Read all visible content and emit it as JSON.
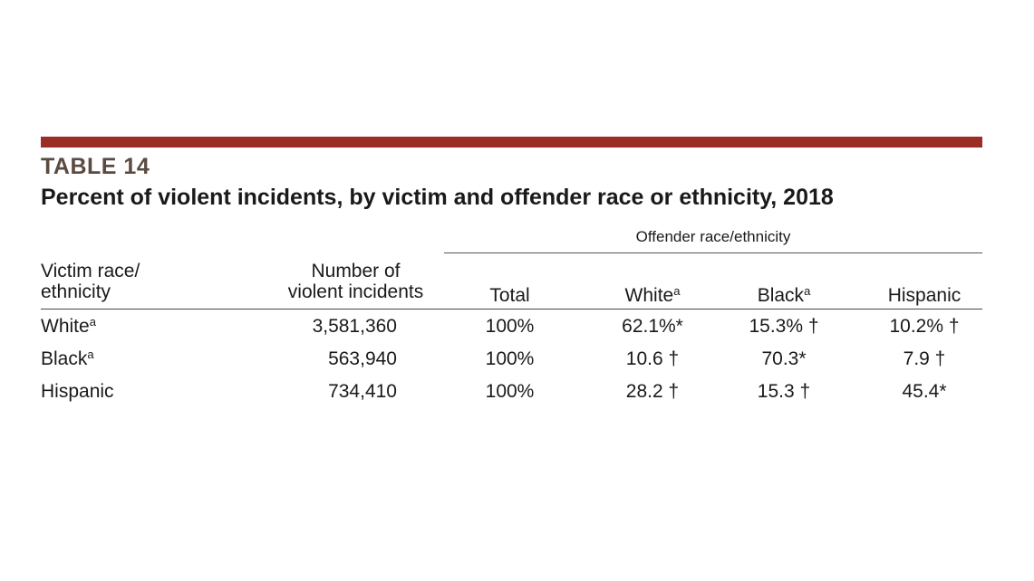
{
  "table": {
    "label": "TABLE 14",
    "title": "Percent of violent incidents, by victim and offender race or ethnicity, 2018",
    "spanner": "Offender race/ethnicity",
    "headers": {
      "victim_line1": "Victim race/",
      "victim_line2": "ethnicity",
      "number_line1": "Number of",
      "number_line2": "violent incidents",
      "total": "Total",
      "white": "White",
      "white_note": "a",
      "black": "Black",
      "black_note": "a",
      "hispanic": "Hispanic"
    },
    "rows": [
      {
        "victim": "White",
        "note": "a",
        "number": "3,581,360",
        "total": "100%",
        "white": "62.1%*",
        "black": "15.3% †",
        "hispanic": "10.2% †"
      },
      {
        "victim": "Black",
        "note": "a",
        "number": "563,940",
        "total": "100%",
        "white": "10.6 †",
        "black": "70.3*",
        "hispanic": "7.9 †"
      },
      {
        "victim": "Hispanic",
        "note": "",
        "number": "734,410",
        "total": "100%",
        "white": "28.2 †",
        "black": "15.3 †",
        "hispanic": "45.4*"
      }
    ]
  },
  "colors": {
    "accent_bar": "#9a2e24",
    "label_color": "#5b4a3f"
  }
}
